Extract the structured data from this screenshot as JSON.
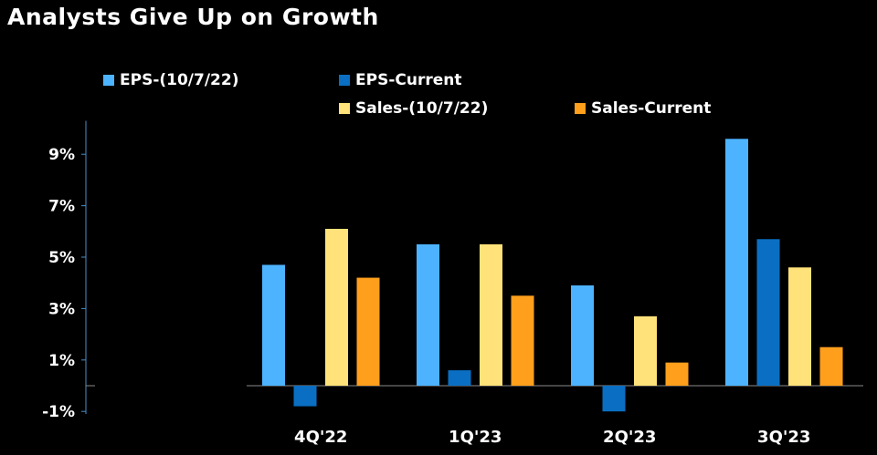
{
  "title": "Analysts Give Up on Growth",
  "colors": {
    "background": "#000000",
    "eps_prev": "#4db3ff",
    "eps_current": "#0a6fc2",
    "sales_prev": "#ffe27a",
    "sales_current": "#ff9f1c",
    "axis": "#4a8fc7",
    "zero_line": "#8a8a8a"
  },
  "chart_data": {
    "type": "bar",
    "title": "Analysts Give Up on Growth",
    "categories": [
      "4Q'22",
      "1Q'23",
      "2Q'23",
      "3Q'23"
    ],
    "series": [
      {
        "name": "EPS-(10/7/22)",
        "values": [
          4.7,
          5.5,
          3.9,
          9.6
        ]
      },
      {
        "name": "EPS-Current",
        "values": [
          -0.8,
          0.6,
          -1.0,
          5.7
        ]
      },
      {
        "name": "Sales-(10/7/22)",
        "values": [
          6.1,
          5.5,
          2.7,
          4.6
        ]
      },
      {
        "name": "Sales-Current",
        "values": [
          4.2,
          3.5,
          0.9,
          1.5
        ]
      }
    ],
    "yticks": [
      "9%",
      "7%",
      "5%",
      "3%",
      "1%",
      "-1%"
    ],
    "ytick_values": [
      9,
      7,
      5,
      3,
      1,
      -1
    ],
    "ylim": [
      -1,
      10
    ],
    "legend_position": "top",
    "grid": false
  }
}
